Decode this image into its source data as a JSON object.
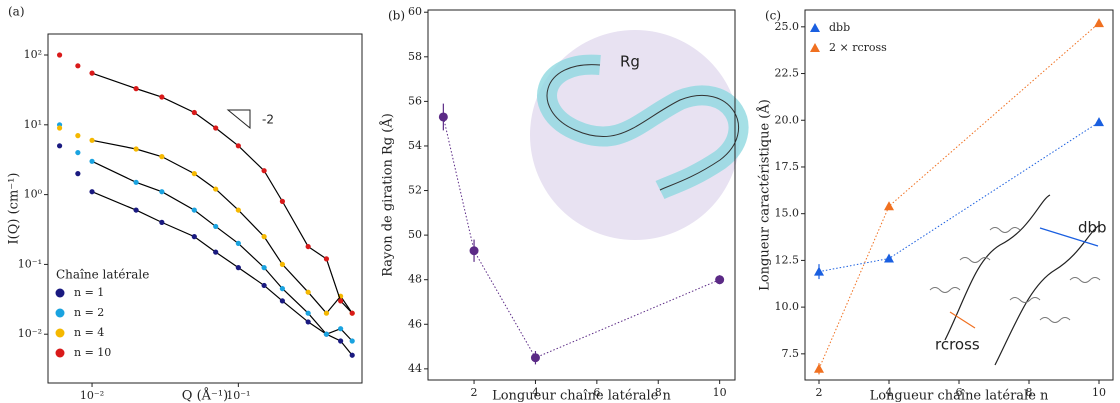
{
  "chart_data": [
    {
      "type": "scatter",
      "panel_label": "(a)",
      "xlabel": "Q (Å⁻¹)",
      "ylabel": "I(Q) (cm⁻¹)",
      "xlog": true,
      "ylog": true,
      "xlim": [
        0.005,
        0.7
      ],
      "ylim": [
        0.002,
        200
      ],
      "xticks": [
        {
          "value": 0.01,
          "label": "10⁻²"
        },
        {
          "value": 0.1,
          "label": "10⁻¹"
        }
      ],
      "yticks": [
        {
          "value": 0.01,
          "label": "10⁻²"
        },
        {
          "value": 0.1,
          "label": "10⁻¹"
        },
        {
          "value": 1,
          "label": "10⁰"
        },
        {
          "value": 10,
          "label": "10¹"
        },
        {
          "value": 100,
          "label": "10²"
        }
      ],
      "legend_title": "Chaîne latérale",
      "legend": "lower left",
      "marker": "o",
      "fit_color": "#000000",
      "annotations": [
        "-2"
      ],
      "x": [
        0.006,
        0.008,
        0.01,
        0.02,
        0.03,
        0.05,
        0.07,
        0.1,
        0.15,
        0.2,
        0.3,
        0.4,
        0.5,
        0.6
      ],
      "series": [
        {
          "name": "n = 1",
          "color": "#1a1a80",
          "values": [
            5,
            2,
            1.1,
            0.6,
            0.4,
            0.25,
            0.15,
            0.09,
            0.05,
            0.03,
            0.015,
            0.01,
            0.008,
            0.005
          ],
          "fit_values": [
            null,
            null,
            1.1,
            0.6,
            0.4,
            0.25,
            0.15,
            0.09,
            0.05,
            0.03,
            0.015,
            0.01,
            0.008,
            0.005
          ]
        },
        {
          "name": "n = 2",
          "color": "#1aa3e0",
          "values": [
            10,
            4,
            3,
            1.5,
            1.1,
            0.6,
            0.35,
            0.2,
            0.09,
            0.045,
            0.02,
            0.01,
            0.012,
            0.008
          ],
          "fit_values": [
            null,
            null,
            3,
            1.5,
            1.1,
            0.6,
            0.35,
            0.2,
            0.09,
            0.045,
            0.02,
            0.01,
            0.012,
            0.008
          ]
        },
        {
          "name": "n = 4",
          "color": "#f5b800",
          "values": [
            9,
            7,
            6,
            4.5,
            3.5,
            2,
            1.2,
            0.6,
            0.25,
            0.1,
            0.04,
            0.02,
            0.035,
            0.02
          ],
          "fit_values": [
            null,
            null,
            6,
            4.5,
            3.5,
            2,
            1.2,
            0.6,
            0.25,
            0.1,
            0.04,
            0.02,
            0.035,
            0.02
          ]
        },
        {
          "name": "n = 10",
          "color": "#d91a1a",
          "values": [
            100,
            70,
            55,
            33,
            25,
            15,
            9,
            5,
            2.2,
            0.8,
            0.18,
            0.12,
            0.03,
            0.02
          ],
          "fit_values": [
            null,
            null,
            55,
            33,
            25,
            15,
            9,
            5,
            2.2,
            0.8,
            0.18,
            0.12,
            0.03,
            0.02
          ]
        }
      ]
    },
    {
      "type": "line",
      "panel_label": "(b)",
      "xlabel": "Longueur chaîne latérale n",
      "ylabel": "Rayon de giration Rg (Å)",
      "xlim": [
        0.5,
        10.5
      ],
      "ylim": [
        43.5,
        60.1
      ],
      "xticks": [
        2,
        4,
        6,
        8,
        10
      ],
      "yticks": [
        44,
        46,
        48,
        50,
        52,
        54,
        56,
        58,
        60
      ],
      "marker": "o",
      "annotations": [
        "Rg"
      ],
      "x": [
        1,
        2,
        4,
        10
      ],
      "series": [
        {
          "color": "#5b2a86",
          "values": [
            55.3,
            49.3,
            44.5,
            48.0
          ],
          "errors": [
            0.6,
            0.5,
            0.3,
            0.2
          ]
        }
      ]
    },
    {
      "type": "line",
      "panel_label": "(c)",
      "xlabel": "Longueur chaîne latérale n",
      "ylabel": "Longueur caractéristique (Å)",
      "xlim": [
        1.6,
        10.4
      ],
      "ylim": [
        6.1,
        25.9
      ],
      "xticks": [
        2,
        4,
        6,
        8,
        10
      ],
      "yticks": [
        {
          "value": 7.5,
          "label": "7.5"
        },
        {
          "value": 10,
          "label": "10.0"
        },
        {
          "value": 12.5,
          "label": "12.5"
        },
        {
          "value": 15,
          "label": "15.0"
        },
        {
          "value": 17.5,
          "label": "17.5"
        },
        {
          "value": 20,
          "label": "20.0"
        },
        {
          "value": 22.5,
          "label": "22.5"
        },
        {
          "value": 25,
          "label": "25.0"
        }
      ],
      "marker": "^",
      "legend": "upper left",
      "annotations": [
        "dbb",
        "rcross"
      ],
      "x": [
        2,
        4,
        10
      ],
      "series": [
        {
          "name": "dbb",
          "color": "#1a5fe0",
          "values": [
            11.9,
            12.6,
            19.9
          ],
          "errors": [
            0.4,
            0.2,
            0.2
          ]
        },
        {
          "name": "2 × rcross",
          "color": "#f07020",
          "values": [
            6.7,
            15.4,
            25.2
          ],
          "errors": [
            0.3,
            0.2,
            0.2
          ]
        }
      ]
    }
  ]
}
